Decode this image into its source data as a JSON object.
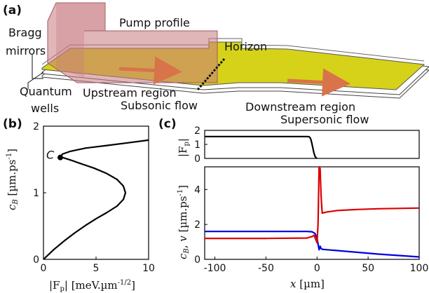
{
  "panel_a": {
    "panel_label": "(a)",
    "labels": {
      "pump_profile": "Pump profile",
      "bragg_line1": "Bragg",
      "bragg_line2": "mirrors",
      "horizon": "Horizon",
      "quantum_line1": "Quantum",
      "quantum_line2": "wells",
      "upstream": "Upstream region",
      "subsonic": "Subsonic flow",
      "downstream": "Downstream region",
      "supersonic": "Supersonic flow"
    },
    "colors": {
      "pump": "#c97a80",
      "layer": "#d6d21a",
      "arrow": "#d9734a"
    }
  },
  "panel_b": {
    "panel_label": "(b)",
    "point_label": "C"
  },
  "panel_c": {
    "panel_label": "(c)"
  },
  "chart_data": [
    {
      "id": "b",
      "type": "line",
      "xlabel": "|Fp| [meV.µm^-1/2]",
      "ylabel": "c_B [µm.ps^-1]",
      "xlim": [
        0,
        10
      ],
      "ylim": [
        0,
        2
      ],
      "xticks": [
        "0",
        "5",
        "10"
      ],
      "yticks": [
        "0",
        "1",
        "2"
      ],
      "color": "#000000",
      "series": [
        {
          "points": [
            [
              0.0,
              0.0
            ],
            [
              1.0,
              0.15
            ],
            [
              2.0,
              0.28
            ],
            [
              3.0,
              0.4
            ],
            [
              4.0,
              0.51
            ],
            [
              5.0,
              0.61
            ],
            [
              6.0,
              0.7
            ],
            [
              7.0,
              0.8
            ],
            [
              7.6,
              0.9
            ],
            [
              7.8,
              1.0
            ],
            [
              7.6,
              1.1
            ],
            [
              7.0,
              1.2
            ],
            [
              6.0,
              1.29
            ],
            [
              4.8,
              1.37
            ],
            [
              3.5,
              1.44
            ],
            [
              2.6,
              1.49
            ],
            [
              2.0,
              1.52
            ],
            [
              1.6,
              1.54
            ],
            [
              1.8,
              1.58
            ],
            [
              2.5,
              1.62
            ],
            [
              4.0,
              1.67
            ],
            [
              6.0,
              1.71
            ],
            [
              8.0,
              1.75
            ],
            [
              10.0,
              1.79
            ]
          ]
        }
      ],
      "marker": {
        "label": "C",
        "x": 1.6,
        "y": 1.53
      }
    },
    {
      "id": "c_top",
      "type": "line",
      "ylabel": "|Fp|",
      "xlim": [
        -110,
        100
      ],
      "ylim": [
        0,
        2
      ],
      "yticks": [
        "0",
        "1",
        "2"
      ],
      "series": [
        {
          "color": "#000000",
          "points": [
            [
              -110,
              1.56
            ],
            [
              -20,
              1.56
            ],
            [
              -10,
              1.56
            ],
            [
              -8,
              1.55
            ],
            [
              -7,
              1.5
            ],
            [
              -6,
              1.35
            ],
            [
              -5,
              1.05
            ],
            [
              -4,
              0.7
            ],
            [
              -3,
              0.38
            ],
            [
              -2,
              0.15
            ],
            [
              -1,
              0.05
            ],
            [
              0,
              0.0
            ]
          ]
        }
      ]
    },
    {
      "id": "c_bottom",
      "type": "line",
      "xlabel": "x [µm]",
      "ylabel": "cB, v [µm.ps^-1]",
      "xlim": [
        -110,
        100
      ],
      "ylim": [
        0,
        5.3
      ],
      "xticks": [
        "-100",
        "-50",
        "0",
        "50",
        "100"
      ],
      "yticks": [
        "0",
        "2",
        "4"
      ],
      "series": [
        {
          "name": "v",
          "color": "#0000dd",
          "points": [
            [
              -110,
              1.6
            ],
            [
              -50,
              1.6
            ],
            [
              -10,
              1.6
            ],
            [
              -5,
              1.58
            ],
            [
              -2,
              1.48
            ],
            [
              0,
              1.2
            ],
            [
              2,
              0.55
            ],
            [
              3,
              0.75
            ],
            [
              4,
              0.62
            ],
            [
              5,
              0.58
            ],
            [
              10,
              0.55
            ],
            [
              20,
              0.5
            ],
            [
              40,
              0.4
            ],
            [
              60,
              0.3
            ],
            [
              80,
              0.22
            ],
            [
              100,
              0.14
            ]
          ]
        },
        {
          "name": "cB",
          "color": "#dd0000",
          "points": [
            [
              -110,
              1.2
            ],
            [
              -50,
              1.2
            ],
            [
              -10,
              1.22
            ],
            [
              -5,
              1.3
            ],
            [
              -3,
              1.38
            ],
            [
              -1,
              1.1
            ],
            [
              0,
              0.95
            ],
            [
              1,
              2.0
            ],
            [
              2,
              5.3
            ],
            [
              3,
              5.2
            ],
            [
              4,
              3.6
            ],
            [
              5,
              2.65
            ],
            [
              10,
              2.72
            ],
            [
              20,
              2.8
            ],
            [
              40,
              2.86
            ],
            [
              60,
              2.9
            ],
            [
              80,
              2.92
            ],
            [
              100,
              2.94
            ]
          ]
        }
      ]
    }
  ]
}
